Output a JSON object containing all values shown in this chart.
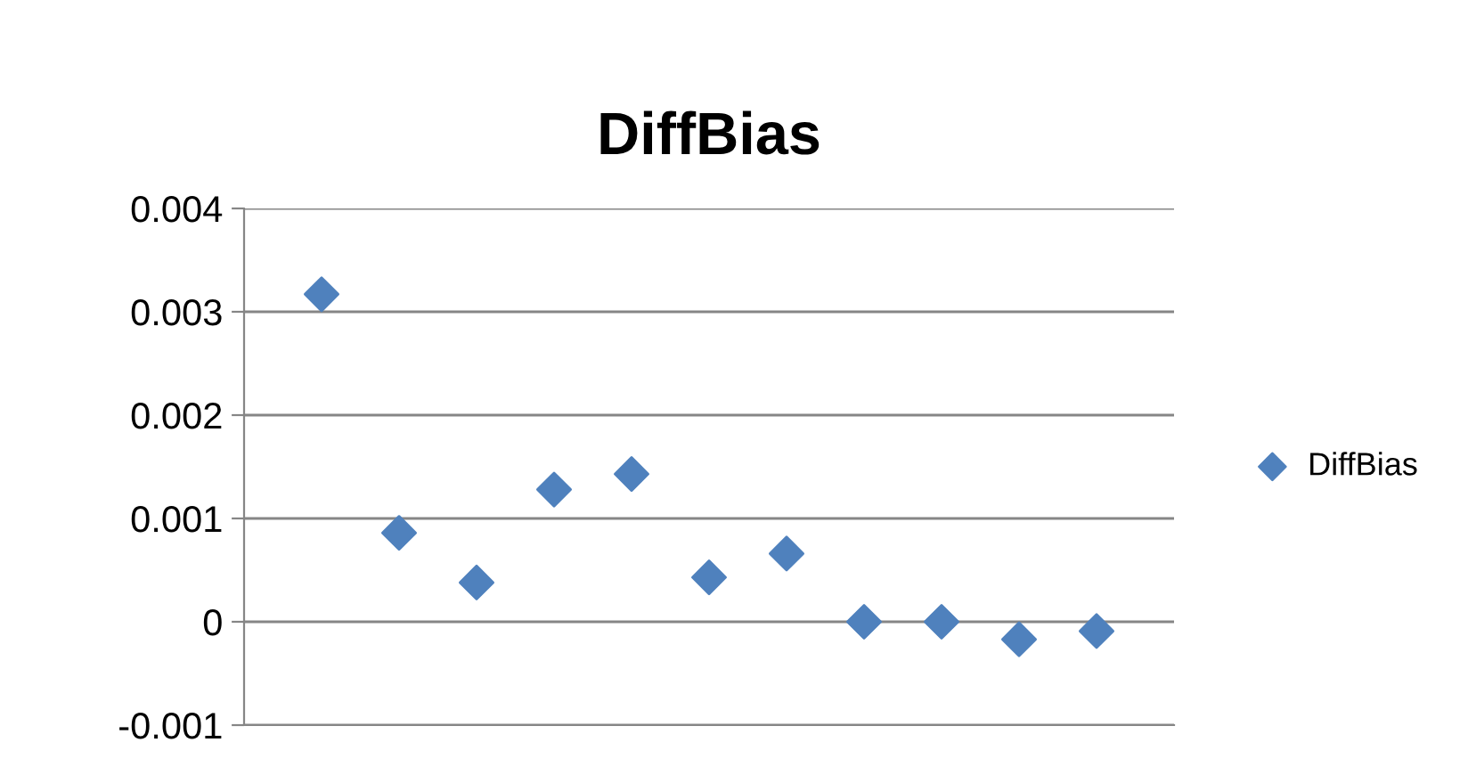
{
  "chart_data": {
    "type": "scatter",
    "title": "DiffBias",
    "categories": [
      null,
      null,
      null,
      null,
      null,
      null,
      null,
      null,
      null,
      null,
      null
    ],
    "series": [
      {
        "name": "DiffBias",
        "color": "#4f81bd",
        "values": [
          0.00317,
          0.00086,
          0.00038,
          0.00128,
          0.00143,
          0.00043,
          0.00066,
          0,
          0,
          -0.00017,
          -9e-05
        ]
      }
    ],
    "ylim": [
      -0.001,
      0.004
    ],
    "yticks": [
      -0.001,
      0,
      0.001,
      0.002,
      0.003,
      0.004
    ],
    "grid": "y",
    "legend": "right",
    "marker": "diamond",
    "tick_labels": "y"
  }
}
